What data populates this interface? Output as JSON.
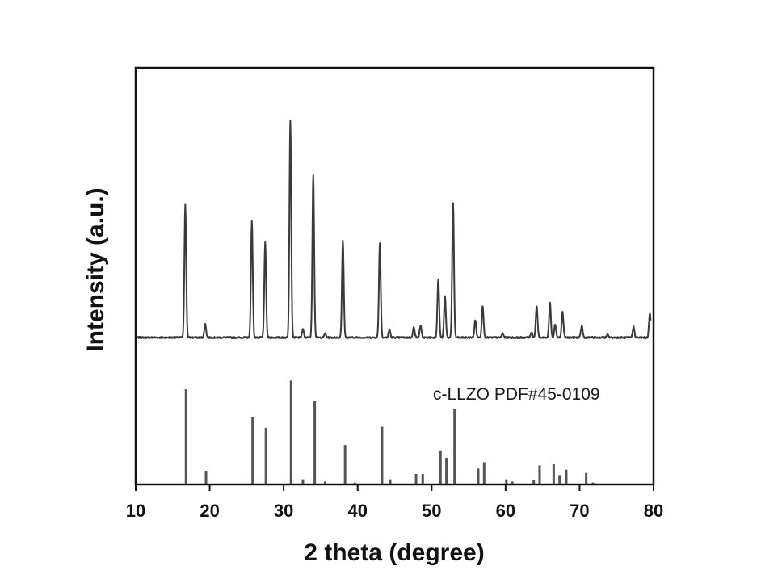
{
  "chart_data": {
    "type": "line",
    "title": "",
    "xlabel": "2 theta (degree)",
    "ylabel": "Intensity (a.u.)",
    "xlim": [
      10,
      80
    ],
    "x_ticks": [
      "10",
      "20",
      "30",
      "40",
      "50",
      "60",
      "70",
      "80"
    ],
    "y_ticks_shown": false,
    "grid": false,
    "series": [
      {
        "role": "measured pattern",
        "color": "#3a3a3a",
        "baseline": 0.05,
        "noise": 0.006,
        "peaks": [
          {
            "x": 16.7,
            "y": 1.0
          },
          {
            "x": 19.4,
            "y": 0.1
          },
          {
            "x": 25.7,
            "y": 0.88
          },
          {
            "x": 27.5,
            "y": 0.71
          },
          {
            "x": 30.9,
            "y": 1.63
          },
          {
            "x": 32.6,
            "y": 0.06
          },
          {
            "x": 34.0,
            "y": 1.22
          },
          {
            "x": 35.6,
            "y": 0.03
          },
          {
            "x": 38.0,
            "y": 0.73
          },
          {
            "x": 43.0,
            "y": 0.71
          },
          {
            "x": 44.3,
            "y": 0.06
          },
          {
            "x": 47.6,
            "y": 0.08
          },
          {
            "x": 48.5,
            "y": 0.09
          },
          {
            "x": 50.9,
            "y": 0.44
          },
          {
            "x": 51.8,
            "y": 0.31
          },
          {
            "x": 52.9,
            "y": 1.01
          },
          {
            "x": 55.9,
            "y": 0.13
          },
          {
            "x": 56.9,
            "y": 0.24
          },
          {
            "x": 59.6,
            "y": 0.03
          },
          {
            "x": 63.5,
            "y": 0.04
          },
          {
            "x": 64.2,
            "y": 0.24
          },
          {
            "x": 66.0,
            "y": 0.26
          },
          {
            "x": 66.7,
            "y": 0.1
          },
          {
            "x": 67.7,
            "y": 0.19
          },
          {
            "x": 70.3,
            "y": 0.09
          },
          {
            "x": 73.8,
            "y": 0.02
          },
          {
            "x": 77.3,
            "y": 0.08
          },
          {
            "x": 79.5,
            "y": 0.18
          }
        ]
      },
      {
        "role": "reference sticks",
        "label": "c-LLZO PDF#45-0109",
        "color": "#555555",
        "sticks": [
          {
            "x": 16.8,
            "y": 0.88
          },
          {
            "x": 19.5,
            "y": 0.12
          },
          {
            "x": 25.8,
            "y": 0.62
          },
          {
            "x": 27.6,
            "y": 0.52
          },
          {
            "x": 31.0,
            "y": 0.96
          },
          {
            "x": 32.6,
            "y": 0.04
          },
          {
            "x": 34.2,
            "y": 0.77
          },
          {
            "x": 35.6,
            "y": 0.02
          },
          {
            "x": 38.3,
            "y": 0.36
          },
          {
            "x": 39.6,
            "y": 0.01
          },
          {
            "x": 43.3,
            "y": 0.53
          },
          {
            "x": 44.4,
            "y": 0.04
          },
          {
            "x": 47.9,
            "y": 0.09
          },
          {
            "x": 48.8,
            "y": 0.09
          },
          {
            "x": 51.2,
            "y": 0.31
          },
          {
            "x": 52.0,
            "y": 0.24
          },
          {
            "x": 53.1,
            "y": 0.7
          },
          {
            "x": 56.3,
            "y": 0.14
          },
          {
            "x": 57.1,
            "y": 0.2
          },
          {
            "x": 60.1,
            "y": 0.04
          },
          {
            "x": 60.9,
            "y": 0.02
          },
          {
            "x": 63.8,
            "y": 0.03
          },
          {
            "x": 64.6,
            "y": 0.17
          },
          {
            "x": 66.5,
            "y": 0.18
          },
          {
            "x": 67.3,
            "y": 0.08
          },
          {
            "x": 68.2,
            "y": 0.13
          },
          {
            "x": 70.9,
            "y": 0.1
          },
          {
            "x": 71.8,
            "y": 0.01
          }
        ]
      }
    ],
    "annotations": [
      "c-LLZO PDF#45-0109"
    ]
  }
}
